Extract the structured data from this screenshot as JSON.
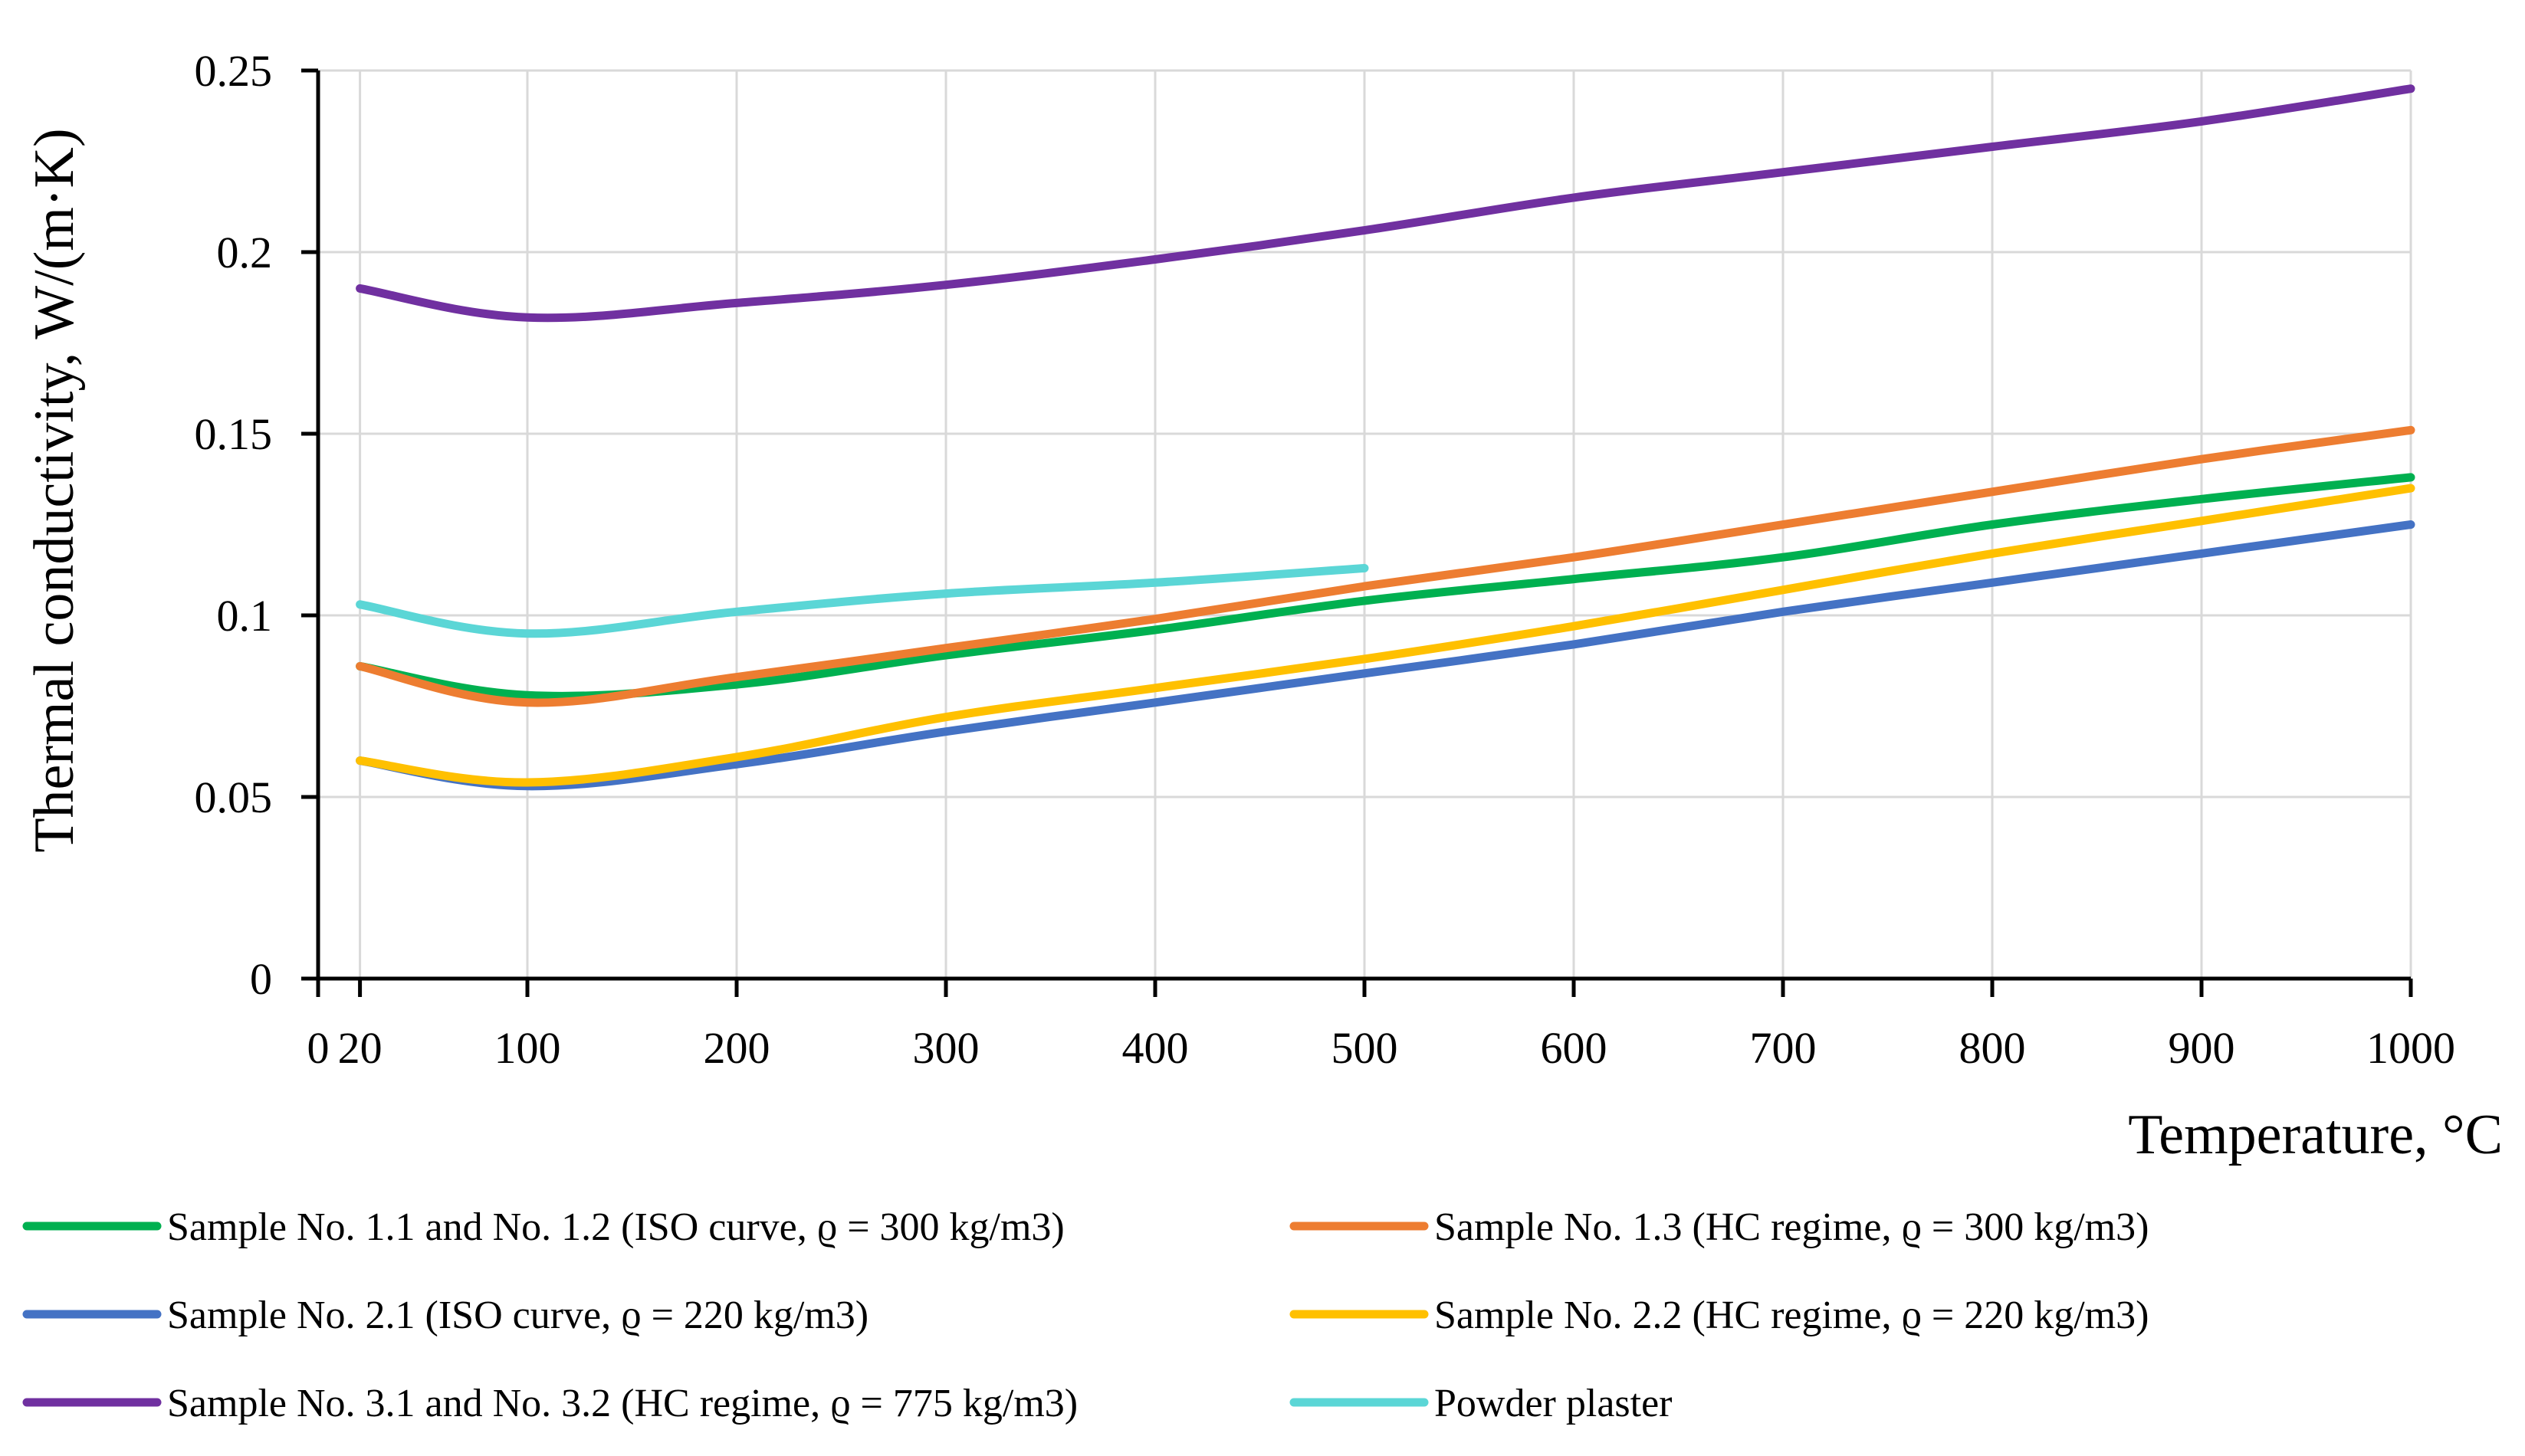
{
  "chart_data": {
    "type": "line",
    "title": "",
    "xlabel": "Temperature, °C",
    "ylabel": "Thermal conductivity, W/(m·K)",
    "xlim": [
      0,
      1000
    ],
    "ylim": [
      0,
      0.25
    ],
    "x_ticks": [
      0,
      20,
      100,
      200,
      300,
      400,
      500,
      600,
      700,
      800,
      900,
      1000
    ],
    "x_tick_labels": [
      "0",
      "20",
      "100",
      "200",
      "300",
      "400",
      "500",
      "600",
      "700",
      "800",
      "900",
      "1000"
    ],
    "y_ticks": [
      0,
      0.05,
      0.1,
      0.15,
      0.2,
      0.25
    ],
    "y_tick_labels": [
      "0",
      "0.05",
      "0.1",
      "0.15",
      "0.2",
      "0.25"
    ],
    "grid": true,
    "legend_position": "bottom",
    "series": [
      {
        "name": "Sample No. 1.1 and No. 1.2 (ISO curve, ϱ = 300 kg/m3)",
        "color": "#00B050",
        "x": [
          20,
          100,
          200,
          300,
          400,
          500,
          600,
          700,
          800,
          900,
          1000
        ],
        "y": [
          0.086,
          0.078,
          0.081,
          0.089,
          0.096,
          0.104,
          0.11,
          0.116,
          0.125,
          0.132,
          0.138
        ]
      },
      {
        "name": "Sample No. 1.3 (HC regime, ϱ = 300 kg/m3)",
        "color": "#ED7D31",
        "x": [
          20,
          100,
          200,
          300,
          400,
          500,
          600,
          700,
          800,
          900,
          1000
        ],
        "y": [
          0.086,
          0.076,
          0.083,
          0.091,
          0.099,
          0.108,
          0.116,
          0.125,
          0.134,
          0.143,
          0.151
        ]
      },
      {
        "name": "Sample No. 2.1 (ISO curve, ϱ = 220 kg/m3)",
        "color": "#4472C4",
        "x": [
          20,
          100,
          200,
          300,
          400,
          500,
          600,
          700,
          800,
          900,
          1000
        ],
        "y": [
          0.06,
          0.053,
          0.059,
          0.068,
          0.076,
          0.084,
          0.092,
          0.101,
          0.109,
          0.117,
          0.125
        ]
      },
      {
        "name": "Sample No. 2.2 (HC regime, ϱ = 220 kg/m3)",
        "color": "#FFC000",
        "x": [
          20,
          100,
          200,
          300,
          400,
          500,
          600,
          700,
          800,
          900,
          1000
        ],
        "y": [
          0.06,
          0.054,
          0.061,
          0.072,
          0.08,
          0.088,
          0.097,
          0.107,
          0.117,
          0.126,
          0.135
        ]
      },
      {
        "name": "Sample No. 3.1 and No. 3.2 (HC regime, ϱ = 775 kg/m3)",
        "color": "#7030A0",
        "x": [
          20,
          100,
          200,
          300,
          400,
          500,
          600,
          700,
          800,
          900,
          1000
        ],
        "y": [
          0.19,
          0.182,
          0.186,
          0.191,
          0.198,
          0.206,
          0.215,
          0.222,
          0.229,
          0.236,
          0.245
        ]
      },
      {
        "name": "Powder plaster",
        "color": "#5BD6D6",
        "x": [
          20,
          100,
          200,
          300,
          400,
          500
        ],
        "y": [
          0.103,
          0.095,
          0.101,
          0.106,
          0.109,
          0.113
        ]
      }
    ]
  }
}
